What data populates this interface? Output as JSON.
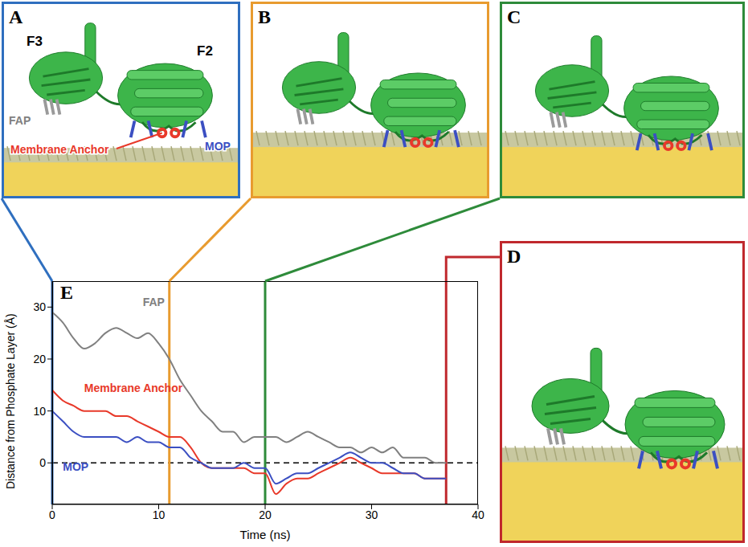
{
  "panels": [
    {
      "letter": "A",
      "color": "#2f6fbf",
      "time": 0,
      "labels": [
        {
          "text": "F3",
          "color": "#000000"
        },
        {
          "text": "F2",
          "color": "#000000"
        },
        {
          "text": "FAP",
          "color": "#808080"
        },
        {
          "text": "Membrane Anchor",
          "color": "#e8392a"
        },
        {
          "text": "MOP",
          "color": "#3b4fc2"
        }
      ]
    },
    {
      "letter": "B",
      "color": "#e89b2f",
      "time": 11
    },
    {
      "letter": "C",
      "color": "#2e8b3a",
      "time": 20
    },
    {
      "letter": "D",
      "color": "#c0282d",
      "time": 37
    }
  ],
  "chart_data": {
    "panel": "E",
    "type": "line",
    "x_label": "Time (ns)",
    "y_label": "Distance from Phosphate Layer (Å)",
    "x": [
      0,
      1,
      2,
      3,
      4,
      5,
      6,
      7,
      8,
      9,
      10,
      11,
      12,
      13,
      14,
      15,
      16,
      17,
      18,
      19,
      20,
      21,
      22,
      23,
      24,
      25,
      26,
      27,
      28,
      29,
      30,
      31,
      32,
      33,
      34,
      35,
      36,
      37
    ],
    "xlim": [
      0,
      40
    ],
    "xticks": [
      0,
      10,
      20,
      30,
      40
    ],
    "ylim": [
      -8,
      35
    ],
    "yticks": [
      0,
      10,
      20,
      30
    ],
    "reference_line": 0,
    "series": [
      {
        "name": "FAP",
        "color": "#808080",
        "values": [
          29,
          27,
          24,
          22,
          23,
          25,
          26,
          25,
          24,
          25,
          23,
          20,
          16,
          13,
          10,
          8,
          6,
          6,
          4,
          5,
          5,
          5,
          4,
          5,
          6,
          5,
          4,
          3,
          3,
          2,
          3,
          2,
          3,
          1,
          1,
          1,
          0,
          0
        ]
      },
      {
        "name": "Membrane Anchor",
        "color": "#e8392a",
        "values": [
          14,
          12,
          11,
          10,
          10,
          10,
          9,
          9,
          8,
          7,
          6,
          5,
          5,
          3,
          0,
          -1,
          -1,
          -1,
          -1,
          -2,
          -2,
          -6,
          -4,
          -3,
          -3,
          -2,
          -1,
          0,
          1,
          0,
          -1,
          -2,
          -2,
          -2,
          -2,
          -3,
          -3,
          -3
        ]
      },
      {
        "name": "MOP",
        "color": "#3b4fc2",
        "values": [
          10,
          8,
          6,
          5,
          5,
          5,
          5,
          4,
          5,
          4,
          4,
          3,
          3,
          1,
          0,
          -1,
          -1,
          -1,
          0,
          -1,
          -1,
          -4,
          -3,
          -2,
          -2,
          -1,
          0,
          1,
          2,
          1,
          0,
          0,
          -1,
          -2,
          -2,
          -3,
          -3,
          -3
        ]
      }
    ]
  }
}
